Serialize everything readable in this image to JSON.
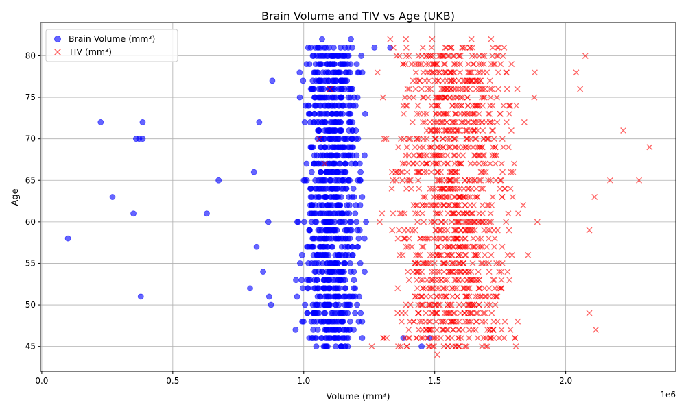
{
  "chart_data": {
    "type": "scatter",
    "title": "Brain Volume and TIV vs Age (UKB)",
    "xlabel": "Volume (mm³)",
    "ylabel": "Age",
    "x_scale_label": "1e6",
    "xlim": [
      -5000,
      2420000
    ],
    "ylim": [
      42,
      84
    ],
    "x_ticks": [
      0,
      500000,
      1000000,
      1500000,
      2000000
    ],
    "x_tick_labels": [
      "0.0",
      "0.5",
      "1.0",
      "1.5",
      "2.0"
    ],
    "y_ticks": [
      45,
      50,
      55,
      60,
      65,
      70,
      75,
      80
    ],
    "y_tick_labels": [
      "45",
      "50",
      "55",
      "60",
      "65",
      "70",
      "75",
      "80"
    ],
    "grid": true,
    "legend_position": "upper-left",
    "age_range": [
      45,
      81
    ],
    "series": [
      {
        "name": "Brain Volume (mm³)",
        "marker": "circle",
        "color": "#0000ff",
        "alpha": 0.6,
        "bulk_range": [
          950000,
          1260000
        ],
        "outliers": [
          {
            "x": 100000,
            "y": 58
          },
          {
            "x": 225000,
            "y": 72
          },
          {
            "x": 270000,
            "y": 63
          },
          {
            "x": 350000,
            "y": 61
          },
          {
            "x": 360000,
            "y": 70
          },
          {
            "x": 372000,
            "y": 70
          },
          {
            "x": 378000,
            "y": 51
          },
          {
            "x": 385000,
            "y": 72
          },
          {
            "x": 385000,
            "y": 70
          },
          {
            "x": 630000,
            "y": 61
          },
          {
            "x": 675000,
            "y": 65
          },
          {
            "x": 795000,
            "y": 52
          },
          {
            "x": 810000,
            "y": 66
          },
          {
            "x": 820000,
            "y": 57
          },
          {
            "x": 845000,
            "y": 54
          },
          {
            "x": 830000,
            "y": 72
          },
          {
            "x": 865000,
            "y": 60
          },
          {
            "x": 868000,
            "y": 51
          },
          {
            "x": 875000,
            "y": 50
          },
          {
            "x": 880000,
            "y": 77
          },
          {
            "x": 1070000,
            "y": 82
          },
          {
            "x": 1180000,
            "y": 82
          },
          {
            "x": 1450000,
            "y": 45
          },
          {
            "x": 1480000,
            "y": 46
          },
          {
            "x": 1380000,
            "y": 46
          },
          {
            "x": 1270000,
            "y": 81
          },
          {
            "x": 1330000,
            "y": 81
          }
        ]
      },
      {
        "name": "TIV (mm³)",
        "marker": "x",
        "color": "#ff0000",
        "alpha": 0.6,
        "bulk_range": [
          1250000,
          1900000
        ],
        "outliers": [
          {
            "x": 2320000,
            "y": 69
          },
          {
            "x": 2280000,
            "y": 65
          },
          {
            "x": 2220000,
            "y": 71
          },
          {
            "x": 2170000,
            "y": 65
          },
          {
            "x": 2110000,
            "y": 63
          },
          {
            "x": 2115000,
            "y": 47
          },
          {
            "x": 2090000,
            "y": 59
          },
          {
            "x": 2090000,
            "y": 49
          },
          {
            "x": 2075000,
            "y": 80
          },
          {
            "x": 2055000,
            "y": 76
          },
          {
            "x": 2040000,
            "y": 78
          },
          {
            "x": 1510000,
            "y": 44
          },
          {
            "x": 1260000,
            "y": 45
          },
          {
            "x": 1370000,
            "y": 45
          },
          {
            "x": 1480000,
            "y": 45
          },
          {
            "x": 1550000,
            "y": 45
          },
          {
            "x": 1810000,
            "y": 45
          },
          {
            "x": 1330000,
            "y": 82
          },
          {
            "x": 1390000,
            "y": 82
          },
          {
            "x": 1490000,
            "y": 82
          },
          {
            "x": 1640000,
            "y": 82
          },
          {
            "x": 1715000,
            "y": 82
          },
          {
            "x": 1080000,
            "y": 67
          },
          {
            "x": 1060000,
            "y": 70
          },
          {
            "x": 1100000,
            "y": 76
          }
        ]
      }
    ]
  }
}
